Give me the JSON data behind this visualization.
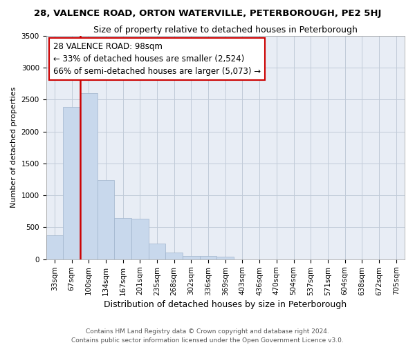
{
  "title": "28, VALENCE ROAD, ORTON WATERVILLE, PETERBOROUGH, PE2 5HJ",
  "subtitle": "Size of property relative to detached houses in Peterborough",
  "xlabel": "Distribution of detached houses by size in Peterborough",
  "ylabel": "Number of detached properties",
  "footer_line1": "Contains HM Land Registry data © Crown copyright and database right 2024.",
  "footer_line2": "Contains public sector information licensed under the Open Government Licence v3.0.",
  "bar_labels": [
    "33sqm",
    "67sqm",
    "100sqm",
    "134sqm",
    "167sqm",
    "201sqm",
    "235sqm",
    "268sqm",
    "302sqm",
    "336sqm",
    "369sqm",
    "403sqm",
    "436sqm",
    "470sqm",
    "504sqm",
    "537sqm",
    "571sqm",
    "604sqm",
    "638sqm",
    "672sqm",
    "705sqm"
  ],
  "bar_values": [
    380,
    2380,
    2600,
    1240,
    640,
    630,
    250,
    105,
    55,
    55,
    40,
    0,
    0,
    0,
    0,
    0,
    0,
    0,
    0,
    0,
    0
  ],
  "bar_color": "#c8d8ec",
  "bar_edge_color": "#a0b4cc",
  "grid_color": "#c0cad8",
  "bg_color": "#e8edf5",
  "vline_color": "#cc0000",
  "vline_position": 1.5,
  "annotation_title": "28 VALENCE ROAD: 98sqm",
  "annotation_line1": "← 33% of detached houses are smaller (2,524)",
  "annotation_line2": "66% of semi-detached houses are larger (5,073) →",
  "ylim_max": 3500,
  "yticks": [
    0,
    500,
    1000,
    1500,
    2000,
    2500,
    3000,
    3500
  ],
  "title_fontsize": 9.5,
  "subtitle_fontsize": 9,
  "ylabel_fontsize": 8,
  "xlabel_fontsize": 9,
  "tick_fontsize": 7.5,
  "footer_fontsize": 6.5,
  "ann_fontsize": 8.5
}
